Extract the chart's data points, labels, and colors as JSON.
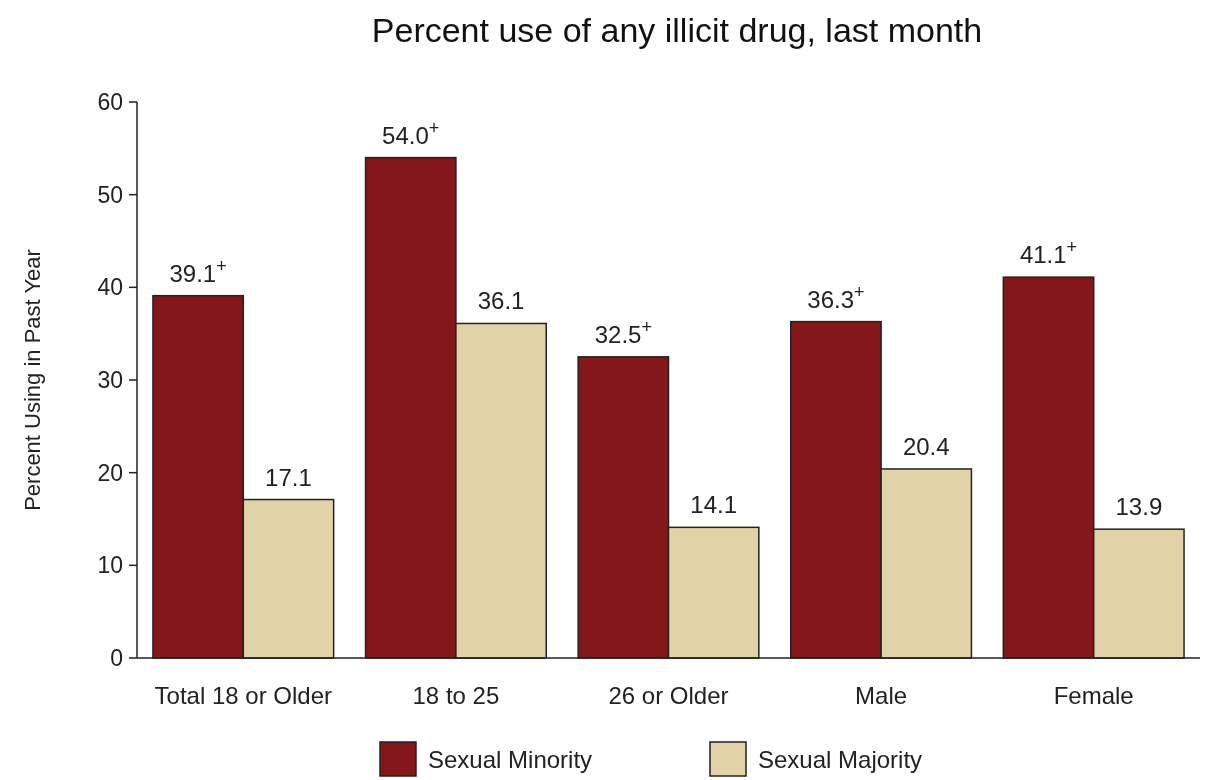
{
  "chart_data": {
    "type": "bar",
    "title": "Percent use of any illicit drug, last month",
    "ylabel": "Percent Using in Past Year",
    "categories": [
      "Total 18 or Older",
      "18 to 25",
      "26 or Older",
      "Male",
      "Female"
    ],
    "series": [
      {
        "name": "Sexual Minority",
        "color": "#841719",
        "values": [
          39.1,
          54.0,
          32.5,
          36.3,
          41.1
        ],
        "value_labels": [
          "39.1$^{+}$",
          "54.0$^{+}$",
          "32.5$^{+}$",
          "36.3$^{+}$",
          "41.1$^{+}$"
        ]
      },
      {
        "name": "Sexual Majority",
        "color": "#e2d2a7",
        "values": [
          17.1,
          36.1,
          14.1,
          20.4,
          13.9
        ],
        "value_labels": [
          "17.1",
          "36.1",
          "14.1",
          "20.4",
          "13.9"
        ]
      }
    ],
    "ylim": [
      0,
      60
    ],
    "yticks": [
      0,
      10,
      20,
      30,
      40,
      50,
      60
    ],
    "legend": "bottom"
  }
}
